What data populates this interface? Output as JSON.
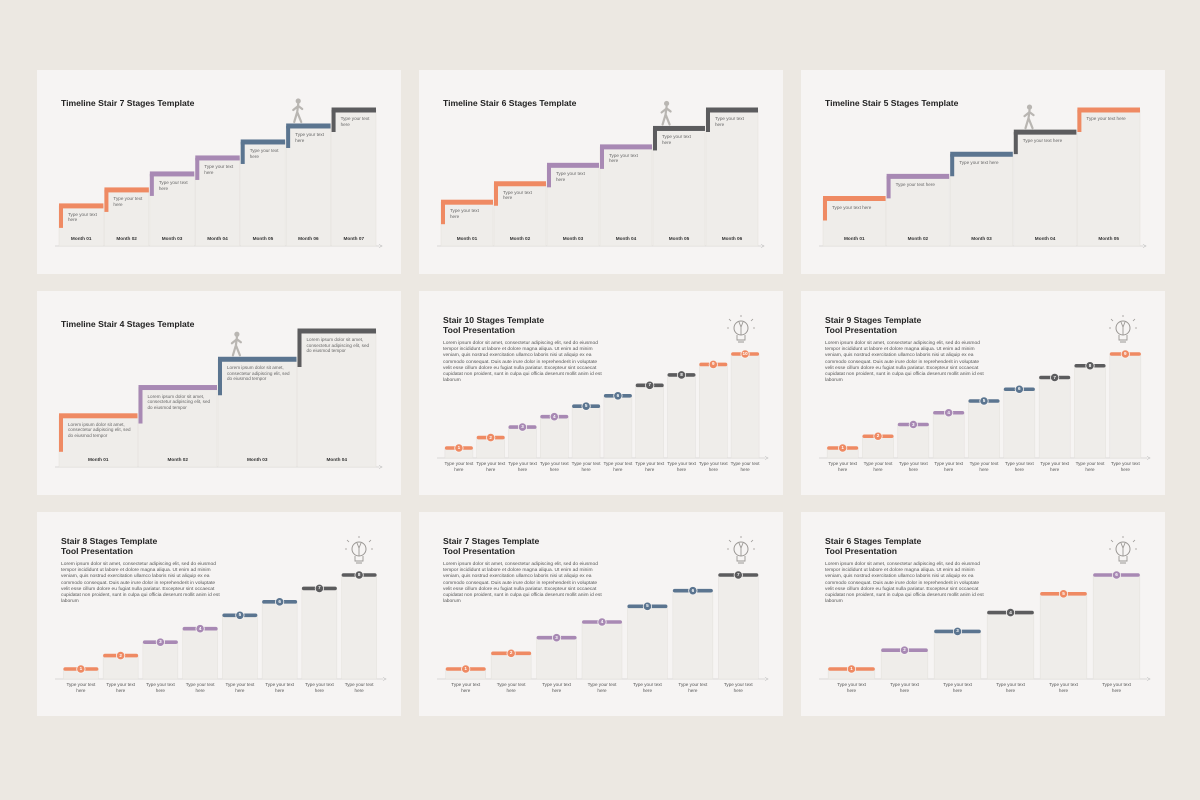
{
  "slides": [
    {
      "kind": "timeline",
      "title": "Timeline Stair 7 Stages Template",
      "stages": [
        {
          "label": "Month 01",
          "text": "Type your text here",
          "color": "#ef8a63"
        },
        {
          "label": "Month 02",
          "text": "Type your text here",
          "color": "#ef8a63"
        },
        {
          "label": "Month 03",
          "text": "Type your text here",
          "color": "#a889b4"
        },
        {
          "label": "Month 04",
          "text": "Type your text here",
          "color": "#a889b4"
        },
        {
          "label": "Month 05",
          "text": "Type your text here",
          "color": "#5b7590"
        },
        {
          "label": "Month 06",
          "text": "Type your text here",
          "color": "#5b7590"
        },
        {
          "label": "Month 07",
          "text": "Type your text here",
          "color": "#5c5c5e"
        }
      ]
    },
    {
      "kind": "timeline",
      "title": "Timeline Stair 6 Stages Template",
      "stages": [
        {
          "label": "Month 01",
          "text": "Type your text here",
          "color": "#ef8a63"
        },
        {
          "label": "Month 02",
          "text": "Type your text here",
          "color": "#ef8a63"
        },
        {
          "label": "Month 03",
          "text": "Type your text here",
          "color": "#a889b4"
        },
        {
          "label": "Month 04",
          "text": "Type your text here",
          "color": "#a889b4"
        },
        {
          "label": "Month 05",
          "text": "Type your text here",
          "color": "#5c5c5e"
        },
        {
          "label": "Month 06",
          "text": "Type your text here",
          "color": "#5c5c5e"
        }
      ]
    },
    {
      "kind": "timeline",
      "title": "Timeline Stair 5 Stages Template",
      "stages": [
        {
          "label": "Month 01",
          "text": "Type your text here",
          "color": "#ef8a63"
        },
        {
          "label": "Month 02",
          "text": "Type your text here",
          "color": "#a889b4"
        },
        {
          "label": "Month 03",
          "text": "Type your text here",
          "color": "#5b7590"
        },
        {
          "label": "Month 04",
          "text": "Type your text here",
          "color": "#5c5c5e"
        },
        {
          "label": "Month 05",
          "text": "Type your text here",
          "color": "#ef8a63"
        }
      ]
    },
    {
      "kind": "timeline",
      "title": "Timeline Stair 4 Stages Template",
      "stages": [
        {
          "label": "Month 01",
          "text": "Lorem ipsum dolor sit amet, consectetur adipiscing elit, sed do eiusmod tempor",
          "color": "#ef8a63"
        },
        {
          "label": "Month 02",
          "text": "Lorem ipsum dolor sit amet, consectetur adipiscing elit, sed do eiusmod tempor",
          "color": "#a889b4"
        },
        {
          "label": "Month 03",
          "text": "Lorem ipsum dolor sit amet, consectetur adipiscing elit, sed do eiusmod tempor",
          "color": "#5b7590"
        },
        {
          "label": "Month 04",
          "text": "Lorem ipsum dolor sit amet, consectetur adipiscing elit, sed do eiusmod tempor",
          "color": "#5c5c5e"
        }
      ]
    },
    {
      "kind": "tool",
      "title": [
        "Stair 10 Stages Template",
        "Tool Presentation"
      ],
      "body": "Lorem ipsum dolor sit amet, consectetur adipiscing elit, sed do eiusmod tempor incididunt ut labore et dolore magna aliqua. Ut enim ad minim veniam, quis nostrud exercitation ullamco laboris nisi ut aliquip ex ea commodo consequat. Duis aute irure dolor in reprehenderit in voluptate velit esse cillum dolore eu fugiat nulla pariatur. Excepteur sint occaecat cupidatat non proident, sunt in culpa qui officia deserunt mollit anim id est laborum",
      "stages": [
        {
          "number": 1,
          "label": "Type your text here",
          "color": "#ef8a63"
        },
        {
          "number": 2,
          "label": "Type your text here",
          "color": "#ef8a63"
        },
        {
          "number": 3,
          "label": "Type your text here",
          "color": "#a889b4"
        },
        {
          "number": 4,
          "label": "Type your text here",
          "color": "#a889b4"
        },
        {
          "number": 5,
          "label": "Type your text here",
          "color": "#5b7590"
        },
        {
          "number": 6,
          "label": "Type your text here",
          "color": "#5b7590"
        },
        {
          "number": 7,
          "label": "Type your text here",
          "color": "#5c5c5e"
        },
        {
          "number": 8,
          "label": "Type your text here",
          "color": "#5c5c5e"
        },
        {
          "number": 9,
          "label": "Type your text here",
          "color": "#ef8a63"
        },
        {
          "number": 10,
          "label": "Type your text here",
          "color": "#ef8a63"
        }
      ]
    },
    {
      "kind": "tool",
      "title": [
        "Stair 9 Stages Template",
        "Tool Presentation"
      ],
      "body": "Lorem ipsum dolor sit amet, consectetur adipiscing elit, sed do eiusmod tempor incididunt ut labore et dolore magna aliqua. Ut enim ad minim veniam, quis nostrud exercitation ullamco laboris nisi ut aliquip ex ea commodo consequat. Duis aute irure dolor in reprehenderit in voluptate velit esse cillum dolore eu fugiat nulla pariatur. Excepteur sint occaecat cupidatat non proident, sunt in culpa qui officia deserunt mollit anim id est laborum",
      "stages": [
        {
          "number": 1,
          "label": "Type your text here",
          "color": "#ef8a63"
        },
        {
          "number": 2,
          "label": "Type your text here",
          "color": "#ef8a63"
        },
        {
          "number": 3,
          "label": "Type your text here",
          "color": "#a889b4"
        },
        {
          "number": 4,
          "label": "Type your text here",
          "color": "#a889b4"
        },
        {
          "number": 5,
          "label": "Type your text here",
          "color": "#5b7590"
        },
        {
          "number": 6,
          "label": "Type your text here",
          "color": "#5b7590"
        },
        {
          "number": 7,
          "label": "Type your text here",
          "color": "#5c5c5e"
        },
        {
          "number": 8,
          "label": "Type your text here",
          "color": "#5c5c5e"
        },
        {
          "number": 9,
          "label": "Type your text here",
          "color": "#ef8a63"
        }
      ]
    },
    {
      "kind": "tool",
      "title": [
        "Stair 8 Stages Template",
        "Tool Presentation"
      ],
      "body": "Lorem ipsum dolor sit amet, consectetur adipiscing elit, sed do eiusmod tempor incididunt ut labore et dolore magna aliqua. Ut enim ad minim veniam, quis nostrud exercitation ullamco laboris nisi ut aliquip ex ea commodo consequat. Duis aute irure dolor in reprehenderit in voluptate velit esse cillum dolore eu fugiat nulla pariatur. Excepteur sint occaecat cupidatat non proident, sunt in culpa qui officia deserunt mollit anim id est laborum",
      "stages": [
        {
          "number": 1,
          "label": "Type your text here",
          "color": "#ef8a63"
        },
        {
          "number": 2,
          "label": "Type your text here",
          "color": "#ef8a63"
        },
        {
          "number": 3,
          "label": "Type your text here",
          "color": "#a889b4"
        },
        {
          "number": 4,
          "label": "Type your text here",
          "color": "#a889b4"
        },
        {
          "number": 5,
          "label": "Type your text here",
          "color": "#5b7590"
        },
        {
          "number": 6,
          "label": "Type your text here",
          "color": "#5b7590"
        },
        {
          "number": 7,
          "label": "Type your text here",
          "color": "#5c5c5e"
        },
        {
          "number": 8,
          "label": "Type your text here",
          "color": "#5c5c5e"
        }
      ]
    },
    {
      "kind": "tool",
      "title": [
        "Stair 7 Stages Template",
        "Tool Presentation"
      ],
      "body": "Lorem ipsum dolor sit amet, consectetur adipiscing elit, sed do eiusmod tempor incididunt ut labore et dolore magna aliqua. Ut enim ad minim veniam, quis nostrud exercitation ullamco laboris nisi ut aliquip ex ea commodo consequat. Duis aute irure dolor in reprehenderit in voluptate velit esse cillum dolore eu fugiat nulla pariatur. Excepteur sint occaecat cupidatat non proident, sunt in culpa qui officia deserunt mollit anim id est laborum",
      "stages": [
        {
          "number": 1,
          "label": "Type your text here",
          "color": "#ef8a63"
        },
        {
          "number": 2,
          "label": "Type your text here",
          "color": "#ef8a63"
        },
        {
          "number": 3,
          "label": "Type your text here",
          "color": "#a889b4"
        },
        {
          "number": 4,
          "label": "Type your text here",
          "color": "#a889b4"
        },
        {
          "number": 5,
          "label": "Type your text here",
          "color": "#5b7590"
        },
        {
          "number": 6,
          "label": "Type your text here",
          "color": "#5b7590"
        },
        {
          "number": 7,
          "label": "Type your text here",
          "color": "#5c5c5e"
        }
      ]
    },
    {
      "kind": "tool",
      "title": [
        "Stair 6 Stages Template",
        "Tool Presentation"
      ],
      "body": "Lorem ipsum dolor sit amet, consectetur adipiscing elit, sed do eiusmod tempor incididunt ut labore et dolore magna aliqua. Ut enim ad minim veniam, quis nostrud exercitation ullamco laboris nisi ut aliquip ex ea commodo consequat. Duis aute irure dolor in reprehenderit in voluptate velit esse cillum dolore eu fugiat nulla pariatur. Excepteur sint occaecat cupidatat non proident, sunt in culpa qui officia deserunt mollit anim id est laborum",
      "stages": [
        {
          "number": 1,
          "label": "Type your text here",
          "color": "#ef8a63"
        },
        {
          "number": 2,
          "label": "Type your text here",
          "color": "#a889b4"
        },
        {
          "number": 3,
          "label": "Type your text here",
          "color": "#5b7590"
        },
        {
          "number": 4,
          "label": "Type your text here",
          "color": "#5c5c5e"
        },
        {
          "number": 5,
          "label": "Type your text here",
          "color": "#ef8a63"
        },
        {
          "number": 6,
          "label": "Type your text here",
          "color": "#a889b4"
        }
      ]
    }
  ]
}
